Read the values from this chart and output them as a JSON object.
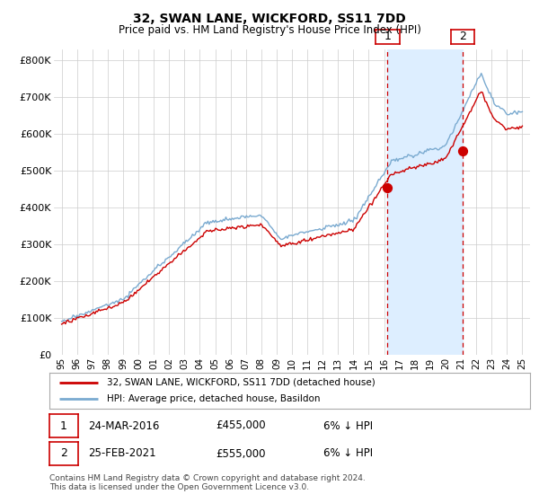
{
  "title": "32, SWAN LANE, WICKFORD, SS11 7DD",
  "subtitle": "Price paid vs. HM Land Registry's House Price Index (HPI)",
  "ylabel_ticks": [
    "£0",
    "£100K",
    "£200K",
    "£300K",
    "£400K",
    "£500K",
    "£600K",
    "£700K",
    "£800K"
  ],
  "ytick_vals": [
    0,
    100000,
    200000,
    300000,
    400000,
    500000,
    600000,
    700000,
    800000
  ],
  "ylim": [
    0,
    830000
  ],
  "xlim_start": 1994.5,
  "xlim_end": 2025.5,
  "purchase1_x": 2016.22,
  "purchase1_y": 455000,
  "purchase2_x": 2021.12,
  "purchase2_y": 555000,
  "purchase1_label": "1",
  "purchase2_label": "2",
  "legend_line1": "32, SWAN LANE, WICKFORD, SS11 7DD (detached house)",
  "legend_line2": "HPI: Average price, detached house, Basildon",
  "table_row1": [
    "1",
    "24-MAR-2016",
    "£455,000",
    "6% ↓ HPI"
  ],
  "table_row2": [
    "2",
    "25-FEB-2021",
    "£555,000",
    "6% ↓ HPI"
  ],
  "footnote": "Contains HM Land Registry data © Crown copyright and database right 2024.\nThis data is licensed under the Open Government Licence v3.0.",
  "hpi_color": "#7aaad0",
  "price_color": "#cc0000",
  "vline_color": "#cc0000",
  "bg_color": "#ffffff",
  "plot_bg": "#ffffff",
  "shade_color": "#ddeeff",
  "grid_color": "#cccccc",
  "tick_years": [
    1995,
    1996,
    1997,
    1998,
    1999,
    2000,
    2001,
    2002,
    2003,
    2004,
    2005,
    2006,
    2007,
    2008,
    2009,
    2010,
    2011,
    2012,
    2013,
    2014,
    2015,
    2016,
    2017,
    2018,
    2019,
    2020,
    2021,
    2022,
    2023,
    2024,
    2025
  ]
}
